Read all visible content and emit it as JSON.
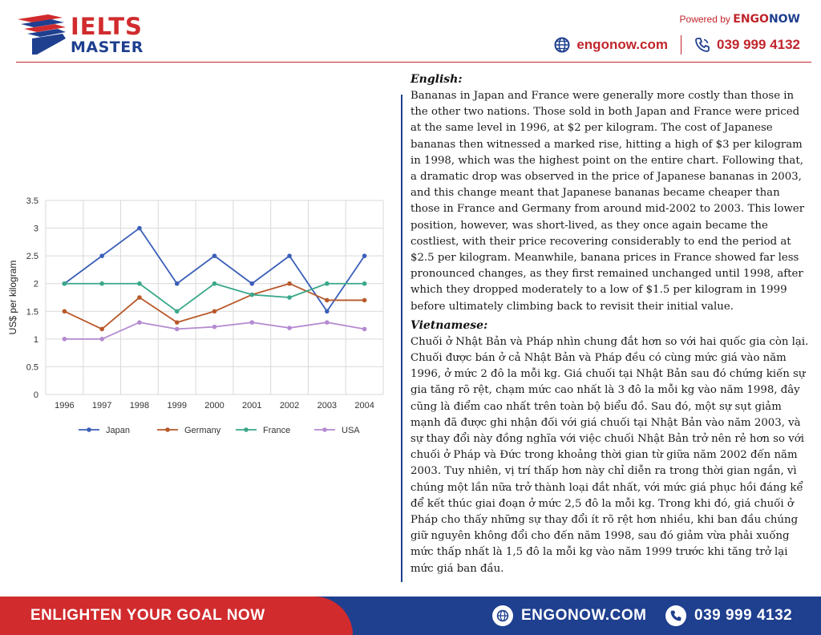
{
  "header": {
    "logo_top": "IELTS",
    "logo_bottom": "MASTER",
    "powered_prefix": "Powered by",
    "powered_brand_a": "ENGO",
    "powered_brand_b": "NOW",
    "website": "engonow.com",
    "phone": "039 999 4132"
  },
  "chart_data": {
    "type": "line",
    "ylabel": "US$ per kilogram",
    "ylim": [
      0,
      3.5
    ],
    "yticks": [
      "0",
      "0.5",
      "1",
      "1.5",
      "2",
      "2.5",
      "3",
      "3.5"
    ],
    "x": [
      "1996",
      "1997",
      "1998",
      "1999",
      "2000",
      "2001",
      "2002",
      "2003",
      "2004"
    ],
    "grid": true,
    "legend_position": "bottom",
    "series": [
      {
        "name": "Japan",
        "color": "#3b5fb8",
        "values": [
          2,
          2.5,
          3,
          2,
          2.5,
          2,
          2.5,
          1.5,
          2.5
        ]
      },
      {
        "name": "Germany",
        "color": "#b8582a",
        "values": [
          1.5,
          1.18,
          1.75,
          1.3,
          1.5,
          1.8,
          2,
          1.7,
          1.7
        ]
      },
      {
        "name": "France",
        "color": "#3aa88a",
        "values": [
          2,
          2,
          2,
          1.5,
          2,
          1.8,
          1.75,
          2,
          2
        ]
      },
      {
        "name": "USA",
        "color": "#b48ad0",
        "values": [
          1,
          1,
          1.3,
          1.18,
          1.22,
          1.3,
          1.2,
          1.3,
          1.18
        ]
      }
    ]
  },
  "text": {
    "english_heading": "English:",
    "english_body": "Bananas in Japan and France were generally more costly than those in the other two nations. Those sold in both Japan and France were priced at the same level in 1996, at $2 per kilogram. The cost of Japanese bananas then witnessed a marked rise, hitting a high of $3 per kilogram in 1998, which was the highest point on the entire chart. Following that, a dramatic drop was observed in the price of Japanese bananas in 2003, and this change meant that Japanese bananas became cheaper than those in France and Germany from around mid-2002 to 2003. This lower position, however, was short-lived, as they once again became the costliest, with their price recovering considerably to end the period at $2.5 per kilogram. Meanwhile, banana prices in France showed far less pronounced changes, as they first remained unchanged until 1998, after which they dropped moderately to a low of $1.5 per kilogram in 1999 before ultimately climbing back to revisit their initial value.",
    "vietnamese_heading": "Vietnamese:",
    "vietnamese_body": "Chuối ở Nhật Bản và Pháp nhìn chung đắt hơn so với hai quốc gia còn lại. Chuối được bán ở cả Nhật Bản và Pháp đều có cùng mức giá vào năm 1996, ở mức 2 đô la mỗi kg. Giá chuối tại Nhật Bản sau đó chứng kiến sự gia tăng rõ rệt, chạm mức cao nhất là 3 đô la mỗi kg vào năm 1998, đây cũng là điểm cao nhất trên toàn bộ biểu đồ. Sau đó, một sự sụt giảm mạnh đã được ghi nhận đối với giá chuối tại Nhật Bản vào năm 2003, và sự thay đổi này đồng nghĩa với việc chuối Nhật Bản trở nên rẻ hơn so với chuối ở Pháp và Đức trong khoảng thời gian từ giữa năm 2002 đến năm 2003. Tuy nhiên, vị trí thấp hơn này chỉ diễn ra trong thời gian ngắn, vì chúng một lần nữa trở thành loại đắt nhất, với mức giá phục hồi đáng kể để kết thúc giai đoạn ở mức 2,5 đô la mỗi kg. Trong khi đó, giá chuối ở Pháp cho thấy những sự thay đổi ít rõ rệt hơn nhiều, khi ban đầu chúng giữ nguyên không đổi cho đến năm 1998, sau đó giảm vừa phải xuống mức thấp nhất là 1,5 đô la mỗi kg vào năm 1999 trước khi tăng trở lại mức giá ban đầu."
  },
  "footer": {
    "slogan": "ENLIGHTEN YOUR GOAL NOW",
    "website": "ENGONOW.COM",
    "phone": "039 999 4132"
  },
  "colors": {
    "brand_red": "#d12b2e",
    "brand_blue": "#1f3f8f"
  },
  "icons": [
    "logo-emblem-icon",
    "globe-icon",
    "phone-icon"
  ]
}
